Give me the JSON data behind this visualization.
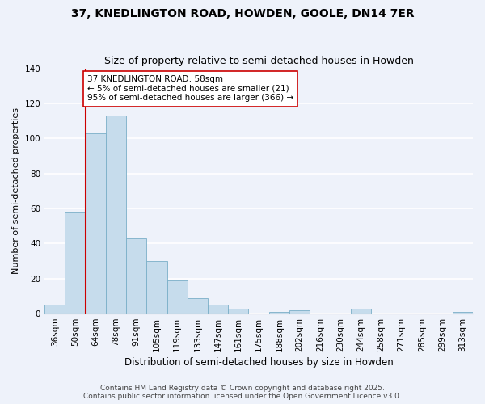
{
  "title": "37, KNEDLINGTON ROAD, HOWDEN, GOOLE, DN14 7ER",
  "subtitle": "Size of property relative to semi-detached houses in Howden",
  "xlabel": "Distribution of semi-detached houses by size in Howden",
  "ylabel": "Number of semi-detached properties",
  "bar_labels": [
    "36sqm",
    "50sqm",
    "64sqm",
    "78sqm",
    "91sqm",
    "105sqm",
    "119sqm",
    "133sqm",
    "147sqm",
    "161sqm",
    "175sqm",
    "188sqm",
    "202sqm",
    "216sqm",
    "230sqm",
    "244sqm",
    "258sqm",
    "271sqm",
    "285sqm",
    "299sqm",
    "313sqm"
  ],
  "bar_values": [
    5,
    58,
    103,
    113,
    43,
    30,
    19,
    9,
    5,
    3,
    0,
    1,
    2,
    0,
    0,
    3,
    0,
    0,
    0,
    0,
    1
  ],
  "bar_color": "#c6dcec",
  "bar_edge_color": "#7aafc8",
  "background_color": "#eef2fa",
  "grid_color": "#ffffff",
  "ylim": [
    0,
    140
  ],
  "yticks": [
    0,
    20,
    40,
    60,
    80,
    100,
    120,
    140
  ],
  "vline_color": "#cc0000",
  "vline_x_index": 1.5,
  "annotation_title": "37 KNEDLINGTON ROAD: 58sqm",
  "annotation_line1": "← 5% of semi-detached houses are smaller (21)",
  "annotation_line2": "95% of semi-detached houses are larger (366) →",
  "annotation_box_color": "#ffffff",
  "annotation_box_edge": "#cc0000",
  "footer1": "Contains HM Land Registry data © Crown copyright and database right 2025.",
  "footer2": "Contains public sector information licensed under the Open Government Licence v3.0.",
  "title_fontsize": 10,
  "subtitle_fontsize": 9,
  "xlabel_fontsize": 8.5,
  "ylabel_fontsize": 8,
  "tick_fontsize": 7.5,
  "annotation_fontsize": 7.5,
  "footer_fontsize": 6.5
}
